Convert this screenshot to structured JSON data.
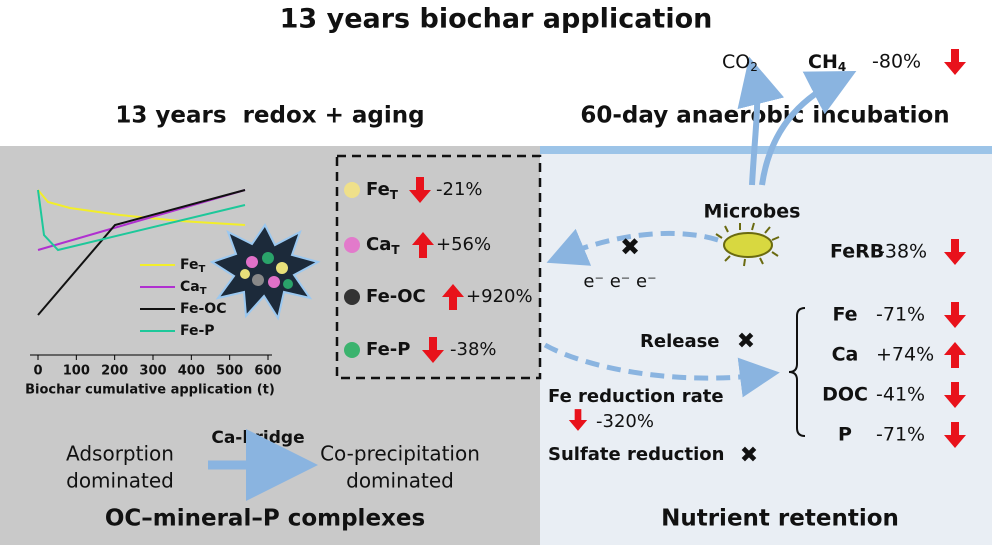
{
  "title": "13 years biochar application",
  "left": {
    "heading": "13 years  redox + aging",
    "chart": {
      "xticks": [
        0,
        100,
        200,
        300,
        400,
        500,
        600
      ],
      "xlabel": "Biochar cumulative application (t)",
      "legend": [
        {
          "base": "Fe",
          "sub": "T"
        },
        {
          "base": "Ca",
          "sub": "T"
        },
        {
          "base": "Fe-OC"
        },
        {
          "base": "Fe-P"
        }
      ]
    },
    "changes": [
      {
        "base": "Fe",
        "sub": "T",
        "change": "-21%"
      },
      {
        "base": "Ca",
        "sub": "T",
        "change": "+56%"
      },
      {
        "base": "Fe-OC",
        "change": "+920%"
      },
      {
        "base": "Fe-P",
        "change": "-38%"
      }
    ],
    "mechanism": {
      "from": [
        "Adsorption",
        "dominated"
      ],
      "via": "Ca-bridge",
      "to": [
        "Co-precipitation",
        "dominated"
      ]
    },
    "footer": "OC–mineral–P complexes"
  },
  "right": {
    "heading": "60-day anaerobic incubation",
    "gases": [
      {
        "base": "CO",
        "sub": "2"
      },
      {
        "base": "CH",
        "sub": "4",
        "change": "-80%"
      }
    ],
    "microbes": "Microbes",
    "ferb": {
      "label": "FeRB",
      "change": "-38%"
    },
    "electrons": "e⁻ e⁻ e⁻",
    "release": "Release",
    "nutrients": [
      {
        "label": "Fe",
        "change": "-71%"
      },
      {
        "label": "Ca",
        "change": "+74%"
      },
      {
        "label": "DOC",
        "change": "-41%"
      },
      {
        "label": "P",
        "change": "-71%"
      }
    ],
    "fe_reduction": {
      "label": "Fe reduction rate",
      "change": "-320%"
    },
    "sulfate": "Sulfate reduction",
    "footer": "Nutrient retention"
  }
}
